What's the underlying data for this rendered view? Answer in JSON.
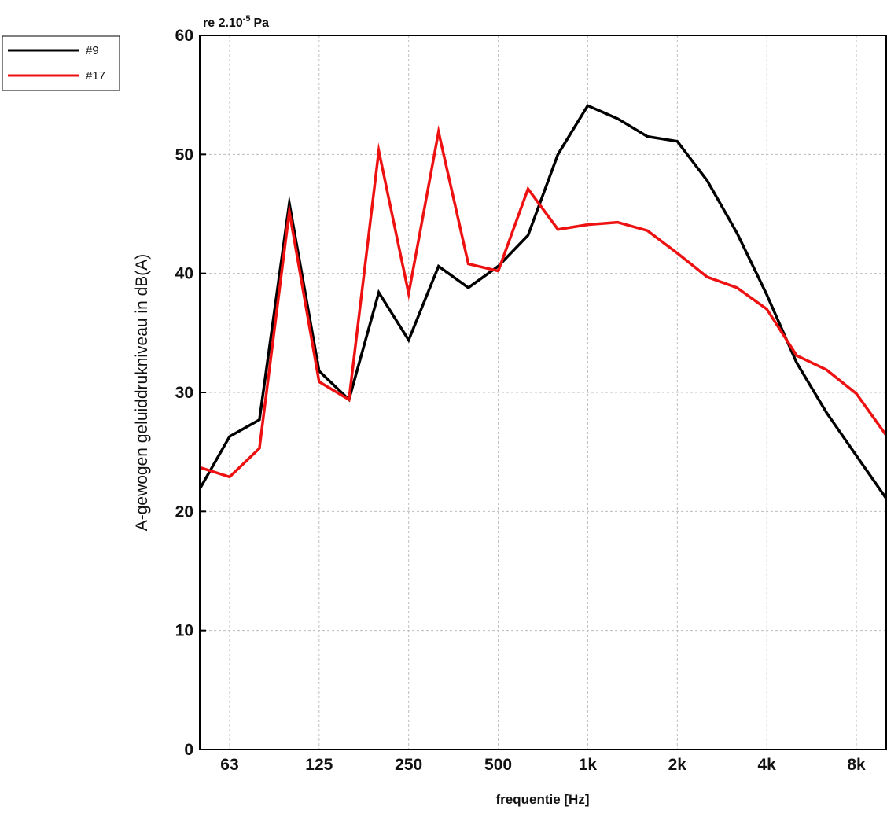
{
  "chart_data": {
    "type": "line",
    "reference_label_prefix": "re 2.10",
    "reference_label_exponent": "-5",
    "reference_label_suffix": "Pa",
    "xlabel": "frequentie [Hz]",
    "ylabel": "A-gewogen geluiddrukniveau in dB(A)",
    "ylim": [
      0,
      60
    ],
    "y_ticks": [
      0,
      10,
      20,
      30,
      40,
      50,
      60
    ],
    "x_scale": "log (1/3-octave bands)",
    "x_ticks": [
      "63",
      "125",
      "250",
      "500",
      "1k",
      "2k",
      "4k",
      "8k"
    ],
    "x_bands": [
      50,
      63,
      80,
      100,
      125,
      160,
      200,
      250,
      315,
      400,
      500,
      630,
      800,
      1000,
      1250,
      1600,
      2000,
      2500,
      3150,
      4000,
      5000,
      6300,
      8000,
      10000
    ],
    "grid": true,
    "legend_position": "top-left",
    "series": [
      {
        "name": "#9",
        "color": "#000000",
        "values": [
          21.9,
          26.3,
          27.7,
          45.9,
          31.8,
          29.4,
          38.4,
          34.4,
          40.6,
          38.8,
          40.6,
          43.2,
          50.0,
          54.1,
          53.0,
          51.5,
          51.1,
          47.8,
          43.4,
          38.2,
          32.5,
          28.3,
          24.7,
          21.1
        ]
      },
      {
        "name": "#17",
        "color": "#ee1111",
        "values": [
          23.7,
          22.9,
          25.3,
          45.2,
          30.9,
          29.4,
          50.3,
          38.3,
          51.9,
          40.8,
          40.2,
          47.1,
          43.7,
          44.1,
          44.3,
          43.6,
          41.7,
          39.7,
          38.8,
          37.0,
          33.1,
          31.9,
          29.9,
          26.4
        ]
      }
    ]
  }
}
